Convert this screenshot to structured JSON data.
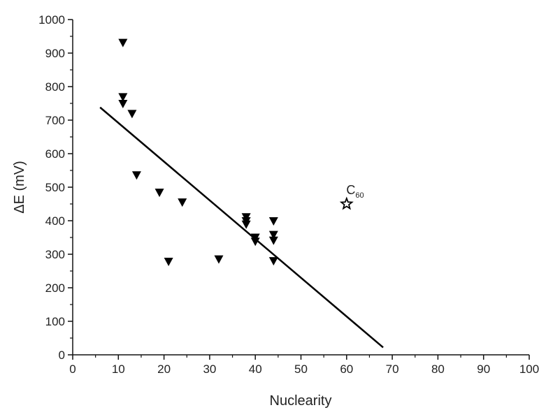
{
  "chart_data": {
    "type": "scatter",
    "xlabel": "Nuclearity",
    "ylabel": "ΔE (mV)",
    "xlim": [
      0,
      100
    ],
    "ylim": [
      0,
      1000
    ],
    "x_ticks": [
      "0",
      "10",
      "20",
      "30",
      "40",
      "50",
      "60",
      "70",
      "80",
      "90",
      "100"
    ],
    "y_ticks": [
      "0",
      "100",
      "200",
      "300",
      "400",
      "500",
      "600",
      "700",
      "800",
      "900",
      "1000"
    ],
    "grid": false,
    "series": [
      {
        "marker": "triangle-down",
        "points": [
          {
            "x": 11,
            "y": 930
          },
          {
            "x": 11,
            "y": 768
          },
          {
            "x": 11,
            "y": 748
          },
          {
            "x": 13,
            "y": 718
          },
          {
            "x": 14,
            "y": 535
          },
          {
            "x": 19,
            "y": 483
          },
          {
            "x": 21,
            "y": 277
          },
          {
            "x": 24,
            "y": 454
          },
          {
            "x": 32,
            "y": 284
          },
          {
            "x": 38,
            "y": 410
          },
          {
            "x": 38,
            "y": 398
          },
          {
            "x": 38,
            "y": 388
          },
          {
            "x": 40,
            "y": 349
          },
          {
            "x": 40,
            "y": 337
          },
          {
            "x": 44,
            "y": 398
          },
          {
            "x": 44,
            "y": 357
          },
          {
            "x": 44,
            "y": 340
          },
          {
            "x": 44,
            "y": 279
          }
        ]
      },
      {
        "marker": "star",
        "points": [
          {
            "x": 60,
            "y": 450
          }
        ]
      }
    ],
    "fit_line": {
      "x": [
        6,
        68
      ],
      "y": [
        738,
        22
      ]
    },
    "annotations": [
      {
        "text": "C",
        "subscript": "60",
        "x": 63,
        "y": 490
      }
    ]
  }
}
